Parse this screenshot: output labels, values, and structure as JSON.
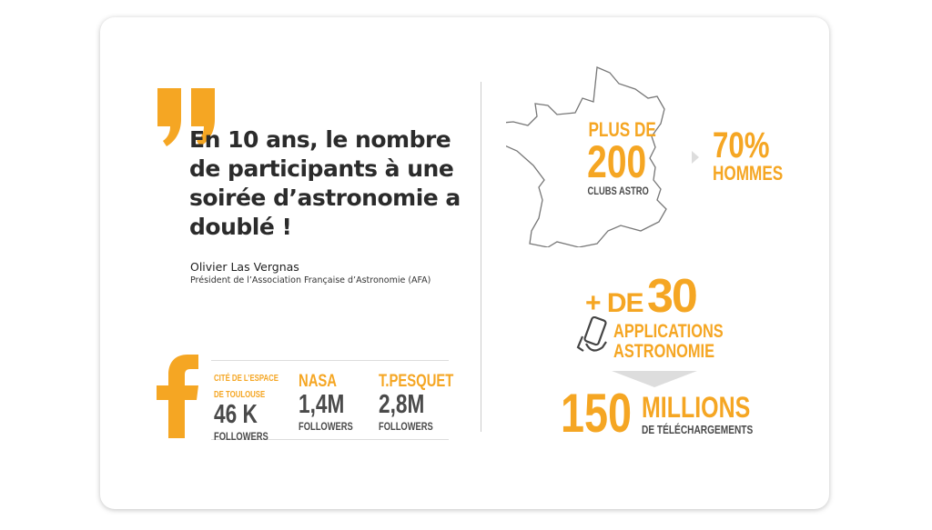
{
  "quote": {
    "text": "En 10 ans, le nombre de participants à une soirée d’astronomie a doublé !",
    "author": "Olivier Las Vergnas",
    "role": "Président de l’Association Française d’Astronomie (AFA)"
  },
  "facebook": {
    "icon": "facebook-icon",
    "accounts": [
      {
        "name_line1": "CITÉ DE L’ESPACE",
        "name_line2": "DE TOULOUSE",
        "count": "46 K",
        "unit": "FOLLOWERS"
      },
      {
        "name_line1": "NASA",
        "count": "1,4M",
        "unit": "FOLLOWERS"
      },
      {
        "name_line1": "T.PESQUET",
        "count": "2,8M",
        "unit": "FOLLOWERS"
      }
    ]
  },
  "clubs": {
    "prefix": "PLUS DE",
    "number": "200",
    "label": "CLUBS ASTRO"
  },
  "men": {
    "percent": "70%",
    "label": "HOMMES"
  },
  "apps": {
    "prefix": "+ DE",
    "number": "30",
    "line1": "APPLICATIONS",
    "line2": "ASTRONOMIE"
  },
  "downloads": {
    "number": "150",
    "unit": "MILLIONS",
    "label": "DE TÉLÉCHARGEMENTS"
  },
  "colors": {
    "accent": "#f5a623",
    "text_dark": "#4a4a4a"
  }
}
